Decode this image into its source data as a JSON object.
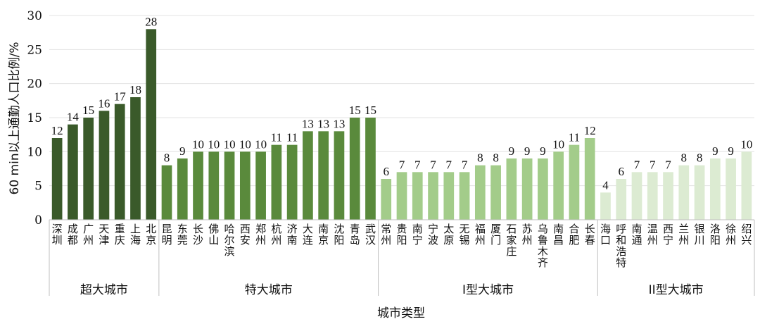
{
  "chart_data": {
    "type": "bar",
    "xlabel": "城市类型",
    "ylabel": "60 min以上通勤人口比例/%",
    "ylim": [
      0,
      30
    ],
    "yticks": [
      0,
      5,
      10,
      15,
      20,
      25,
      30
    ],
    "grid": true,
    "groups": [
      {
        "name": "超大城市",
        "color": "#3a5a2a",
        "categories": [
          "深圳",
          "成都",
          "广州",
          "天津",
          "重庆",
          "上海",
          "北京"
        ],
        "values": [
          12,
          14,
          15,
          16,
          17,
          18,
          28
        ]
      },
      {
        "name": "特大城市",
        "color": "#5a8a3c",
        "categories": [
          "昆明",
          "东莞",
          "长沙",
          "佛山",
          "哈尔滨",
          "西安",
          "郑州",
          "杭州",
          "济南",
          "大连",
          "南京",
          "沈阳",
          "青岛",
          "武汉"
        ],
        "values": [
          8,
          9,
          10,
          10,
          10,
          10,
          10,
          11,
          11,
          13,
          13,
          13,
          15,
          15
        ]
      },
      {
        "name": "I型大城市",
        "color": "#a3cc8a",
        "categories": [
          "常州",
          "贵阳",
          "南宁",
          "宁波",
          "太原",
          "无锡",
          "福州",
          "厦门",
          "石家庄",
          "苏州",
          "乌鲁木齐",
          "南昌",
          "合肥",
          "长春"
        ],
        "values": [
          6,
          7,
          7,
          7,
          7,
          7,
          8,
          8,
          9,
          9,
          9,
          10,
          11,
          12
        ]
      },
      {
        "name": "II型大城市",
        "color": "#dcebd2",
        "categories": [
          "海口",
          "呼和浩特",
          "南通",
          "温州",
          "西宁",
          "兰州",
          "银川",
          "洛阳",
          "徐州",
          "绍兴"
        ],
        "values": [
          4,
          6,
          7,
          7,
          7,
          8,
          8,
          9,
          9,
          10
        ]
      }
    ]
  }
}
